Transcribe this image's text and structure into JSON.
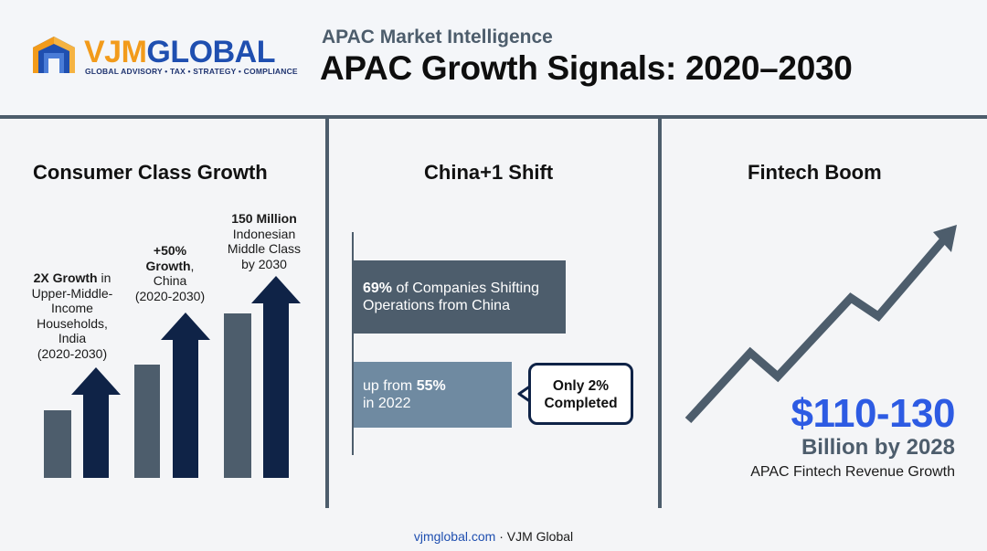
{
  "header": {
    "logo": {
      "vjm": "VJM",
      "global": "GLOBAL",
      "tagline": "GLOBAL ADVISORY • TAX • STRATEGY • COMPLIANCE"
    },
    "eyebrow": "APAC Market Intelligence",
    "title": "APAC Growth Signals: 2020–2030"
  },
  "consumer": {
    "title": "Consumer Class Growth",
    "stats": [
      {
        "bold": "2X Growth",
        "rest_line1": " in",
        "lines": [
          "Upper-Middle-",
          "Income",
          "Households,",
          "India",
          "(2020-2030)"
        ]
      },
      {
        "bold1": "+50%",
        "bold2": "Growth",
        "rest": ",",
        "lines": [
          "China",
          "(2020-2030)"
        ]
      },
      {
        "bold": "150 Million",
        "lines": [
          "Indonesian",
          "Middle Class",
          "by 2030"
        ]
      }
    ]
  },
  "china": {
    "title": "China+1 Shift",
    "bar1": {
      "bold": "69%",
      "rest": " of Companies Shifting",
      "line2": "Operations from China"
    },
    "bar2": {
      "prefix": "up from ",
      "bold": "55%",
      "line2": "in 2022"
    },
    "callout": {
      "line1": "Only 2%",
      "line2": "Completed"
    }
  },
  "fintech": {
    "title": "Fintech Boom",
    "value": "$110-130",
    "sub": "Billion by 2028",
    "desc": "APAC Fintech Revenue Growth"
  },
  "footer": {
    "site": "vjmglobal.com",
    "sep": " · ",
    "brand": "VJM Global"
  },
  "colors": {
    "slate": "#4d5d6c",
    "navy": "#0f2347",
    "blue": "#2d5be3",
    "steel": "#6f8aa1",
    "orange": "#f29b1b"
  }
}
